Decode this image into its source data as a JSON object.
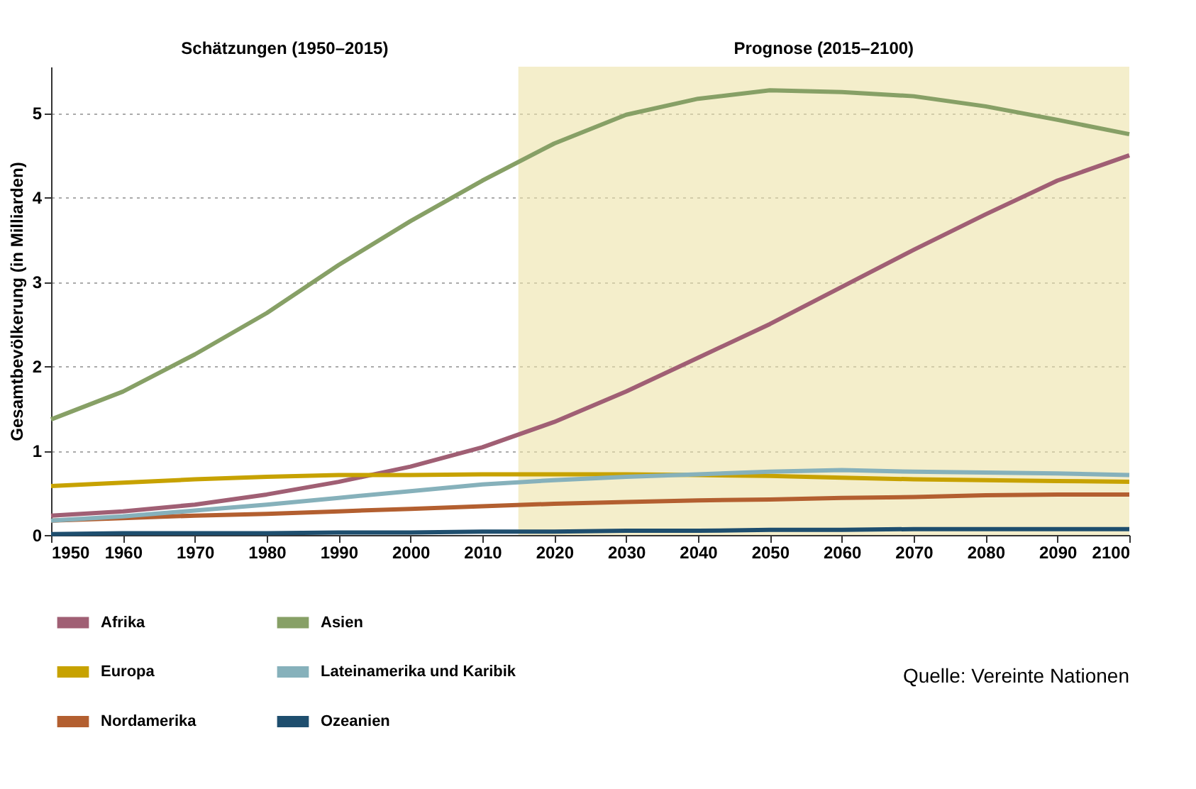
{
  "chart_data": {
    "type": "line",
    "ylabel": "Gesamtbevölkerung (in Milliarden)",
    "x": [
      1950,
      1960,
      1970,
      1980,
      1990,
      2000,
      2010,
      2020,
      2030,
      2040,
      2050,
      2060,
      2070,
      2080,
      2090,
      2100
    ],
    "series": [
      {
        "name": "Afrika",
        "color": "#a05f74",
        "values": [
          0.23,
          0.28,
          0.36,
          0.48,
          0.63,
          0.81,
          1.04,
          1.34,
          1.7,
          2.1,
          2.5,
          2.94,
          3.38,
          3.8,
          4.2,
          4.5
        ]
      },
      {
        "name": "Europa",
        "color": "#c7a200",
        "values": [
          0.58,
          0.62,
          0.66,
          0.69,
          0.71,
          0.71,
          0.72,
          0.72,
          0.72,
          0.71,
          0.7,
          0.68,
          0.66,
          0.65,
          0.64,
          0.63
        ]
      },
      {
        "name": "Nordamerika",
        "color": "#b35f30",
        "values": [
          0.17,
          0.2,
          0.23,
          0.25,
          0.28,
          0.31,
          0.34,
          0.37,
          0.39,
          0.41,
          0.42,
          0.44,
          0.45,
          0.47,
          0.48,
          0.48
        ]
      },
      {
        "name": "Asien",
        "color": "#87a066",
        "values": [
          1.37,
          1.7,
          2.14,
          2.63,
          3.2,
          3.72,
          4.2,
          4.64,
          4.98,
          5.17,
          5.27,
          5.25,
          5.2,
          5.08,
          4.92,
          4.75
        ]
      },
      {
        "name": "Lateinamerika und Karibik",
        "color": "#86b1bb",
        "values": [
          0.17,
          0.22,
          0.29,
          0.36,
          0.44,
          0.52,
          0.6,
          0.65,
          0.69,
          0.72,
          0.75,
          0.77,
          0.75,
          0.74,
          0.73,
          0.71
        ]
      },
      {
        "name": "Ozeanien",
        "color": "#1e4e6e",
        "values": [
          0.01,
          0.02,
          0.02,
          0.02,
          0.03,
          0.03,
          0.04,
          0.04,
          0.05,
          0.05,
          0.06,
          0.06,
          0.07,
          0.07,
          0.07,
          0.07
        ]
      }
    ],
    "xlim": [
      1950,
      2100
    ],
    "xticks": [
      1950,
      1960,
      1970,
      1980,
      1990,
      2000,
      2010,
      2020,
      2030,
      2040,
      2050,
      2060,
      2070,
      2080,
      2090,
      2100
    ],
    "ylim": [
      0,
      5.55
    ],
    "yticks": [
      0,
      1,
      2,
      3,
      4,
      5
    ],
    "bands": [
      {
        "axis": "x",
        "from": 2015,
        "to": 2100,
        "label": "Prognose (2015–2100)",
        "color": "#ece3a8"
      }
    ],
    "annotations": [
      "Schätzungen (1950–2015)",
      "Quelle: Vereinte Nationen"
    ],
    "grid": "y",
    "legend": "bottom",
    "marker": "none",
    "line_style": "solid"
  }
}
